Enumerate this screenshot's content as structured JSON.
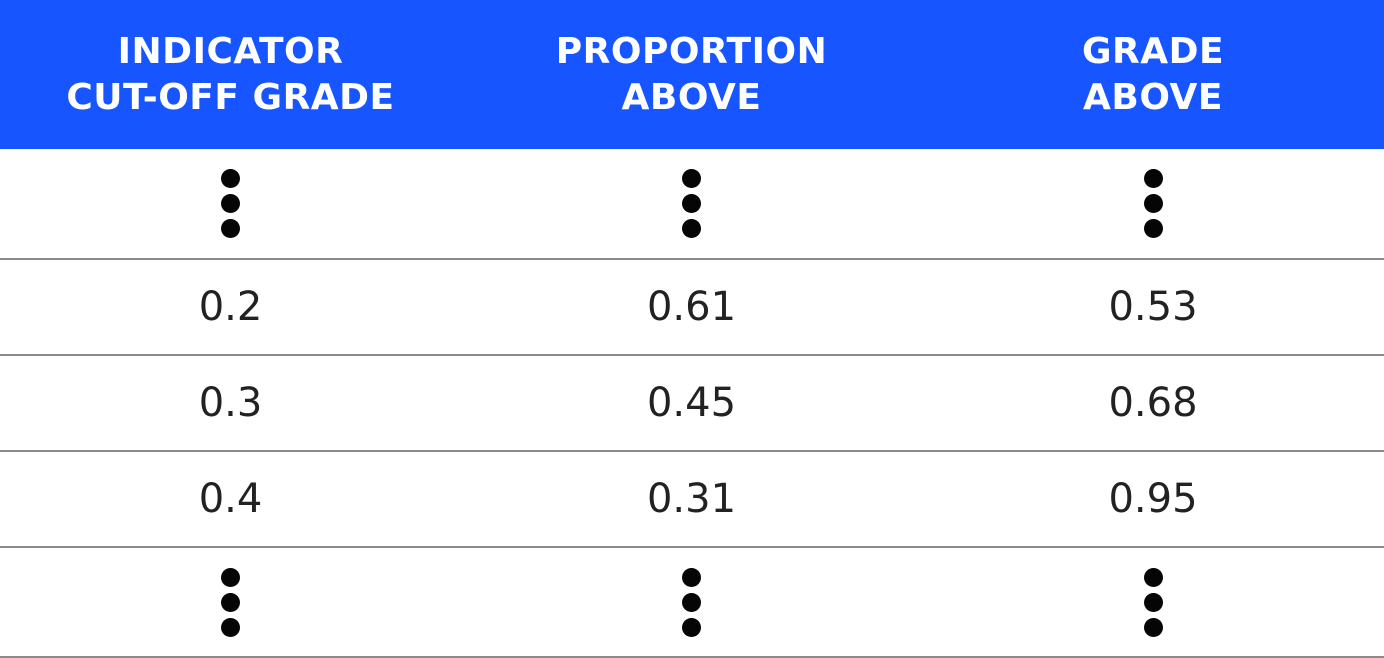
{
  "table": {
    "headers": [
      [
        "INDICATOR",
        "CUT-OFF GRADE"
      ],
      [
        "PROPORTION",
        "ABOVE"
      ],
      [
        "GRADE",
        "ABOVE"
      ]
    ],
    "rows": [
      [
        "0.2",
        "0.61",
        "0.53"
      ],
      [
        "0.3",
        "0.45",
        "0.68"
      ],
      [
        "0.4",
        "0.31",
        "0.95"
      ]
    ],
    "ellipsis_icon": "vertical-ellipsis-icon",
    "colors": {
      "header_background": "#1655ff",
      "header_text": "#ffffff",
      "body_text": "#222222",
      "divider": "#8a8a8a"
    }
  }
}
